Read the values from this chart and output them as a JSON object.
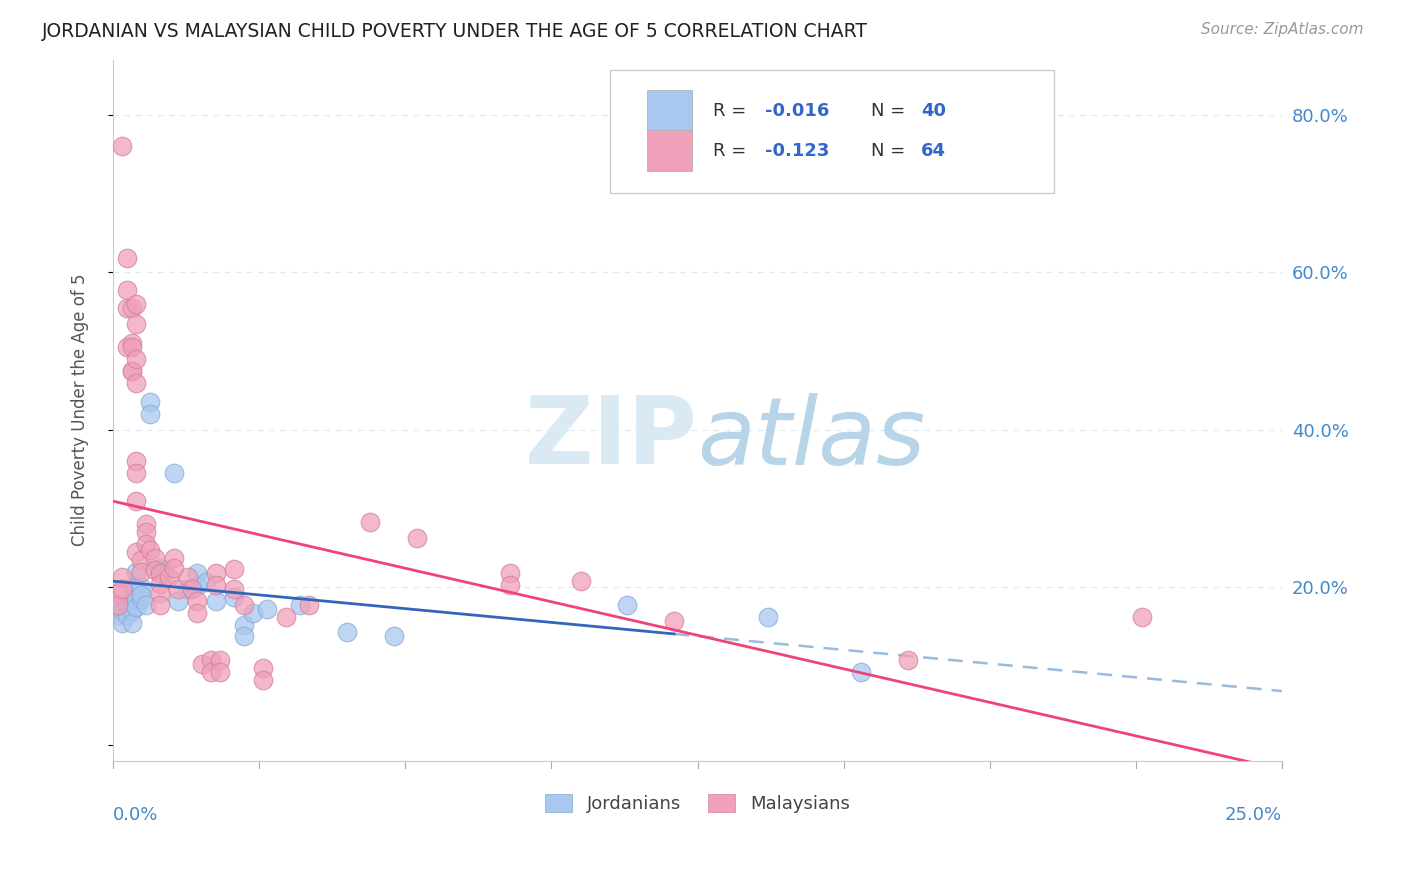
{
  "title": "JORDANIAN VS MALAYSIAN CHILD POVERTY UNDER THE AGE OF 5 CORRELATION CHART",
  "source": "Source: ZipAtlas.com",
  "ylabel": "Child Poverty Under the Age of 5",
  "ytick_values": [
    0.0,
    0.2,
    0.4,
    0.6,
    0.8
  ],
  "ytick_labels": [
    "",
    "20.0%",
    "40.0%",
    "60.0%",
    "80.0%"
  ],
  "xlim": [
    0.0,
    0.25
  ],
  "ylim": [
    -0.02,
    0.87
  ],
  "legend_labels": [
    "Jordanians",
    "Malaysians"
  ],
  "jordan_color": "#a8c8f0",
  "jordan_edge_color": "#88aad0",
  "malaysia_color": "#f0a0b8",
  "malaysia_edge_color": "#d080a0",
  "jordan_line_color": "#3366bb",
  "malaysia_line_color": "#ee4477",
  "dashed_line_color": "#99bbdd",
  "background_color": "#ffffff",
  "grid_color": "#dde8f0",
  "right_tick_color": "#4488cc",
  "jordanians": [
    [
      0.001,
      0.175
    ],
    [
      0.001,
      0.165
    ],
    [
      0.002,
      0.17
    ],
    [
      0.002,
      0.155
    ],
    [
      0.003,
      0.18
    ],
    [
      0.003,
      0.165
    ],
    [
      0.004,
      0.2
    ],
    [
      0.004,
      0.185
    ],
    [
      0.004,
      0.17
    ],
    [
      0.004,
      0.155
    ],
    [
      0.005,
      0.22
    ],
    [
      0.005,
      0.2
    ],
    [
      0.005,
      0.185
    ],
    [
      0.005,
      0.175
    ],
    [
      0.006,
      0.185
    ],
    [
      0.006,
      0.2
    ],
    [
      0.006,
      0.19
    ],
    [
      0.007,
      0.178
    ],
    [
      0.008,
      0.435
    ],
    [
      0.008,
      0.42
    ],
    [
      0.01,
      0.225
    ],
    [
      0.011,
      0.218
    ],
    [
      0.013,
      0.345
    ],
    [
      0.014,
      0.183
    ],
    [
      0.016,
      0.198
    ],
    [
      0.018,
      0.218
    ],
    [
      0.018,
      0.202
    ],
    [
      0.02,
      0.207
    ],
    [
      0.022,
      0.183
    ],
    [
      0.026,
      0.188
    ],
    [
      0.028,
      0.153
    ],
    [
      0.028,
      0.138
    ],
    [
      0.03,
      0.168
    ],
    [
      0.033,
      0.173
    ],
    [
      0.04,
      0.178
    ],
    [
      0.05,
      0.143
    ],
    [
      0.06,
      0.138
    ],
    [
      0.11,
      0.178
    ],
    [
      0.14,
      0.163
    ],
    [
      0.16,
      0.093
    ]
  ],
  "malaysians": [
    [
      0.001,
      0.193
    ],
    [
      0.001,
      0.178
    ],
    [
      0.002,
      0.76
    ],
    [
      0.002,
      0.213
    ],
    [
      0.002,
      0.198
    ],
    [
      0.003,
      0.618
    ],
    [
      0.003,
      0.578
    ],
    [
      0.003,
      0.555
    ],
    [
      0.003,
      0.505
    ],
    [
      0.004,
      0.555
    ],
    [
      0.004,
      0.51
    ],
    [
      0.004,
      0.505
    ],
    [
      0.004,
      0.475
    ],
    [
      0.004,
      0.475
    ],
    [
      0.005,
      0.56
    ],
    [
      0.005,
      0.535
    ],
    [
      0.005,
      0.49
    ],
    [
      0.005,
      0.46
    ],
    [
      0.005,
      0.36
    ],
    [
      0.005,
      0.345
    ],
    [
      0.005,
      0.31
    ],
    [
      0.005,
      0.245
    ],
    [
      0.006,
      0.235
    ],
    [
      0.006,
      0.22
    ],
    [
      0.007,
      0.28
    ],
    [
      0.007,
      0.27
    ],
    [
      0.007,
      0.255
    ],
    [
      0.008,
      0.248
    ],
    [
      0.009,
      0.237
    ],
    [
      0.009,
      0.222
    ],
    [
      0.01,
      0.218
    ],
    [
      0.01,
      0.205
    ],
    [
      0.01,
      0.193
    ],
    [
      0.01,
      0.178
    ],
    [
      0.012,
      0.213
    ],
    [
      0.013,
      0.238
    ],
    [
      0.013,
      0.225
    ],
    [
      0.014,
      0.198
    ],
    [
      0.016,
      0.213
    ],
    [
      0.017,
      0.198
    ],
    [
      0.018,
      0.183
    ],
    [
      0.018,
      0.168
    ],
    [
      0.019,
      0.103
    ],
    [
      0.021,
      0.108
    ],
    [
      0.021,
      0.093
    ],
    [
      0.022,
      0.218
    ],
    [
      0.022,
      0.203
    ],
    [
      0.023,
      0.108
    ],
    [
      0.023,
      0.093
    ],
    [
      0.026,
      0.223
    ],
    [
      0.026,
      0.198
    ],
    [
      0.028,
      0.178
    ],
    [
      0.032,
      0.098
    ],
    [
      0.032,
      0.083
    ],
    [
      0.037,
      0.163
    ],
    [
      0.042,
      0.178
    ],
    [
      0.055,
      0.283
    ],
    [
      0.065,
      0.263
    ],
    [
      0.085,
      0.218
    ],
    [
      0.085,
      0.203
    ],
    [
      0.1,
      0.208
    ],
    [
      0.12,
      0.158
    ],
    [
      0.17,
      0.108
    ],
    [
      0.22,
      0.163
    ]
  ]
}
